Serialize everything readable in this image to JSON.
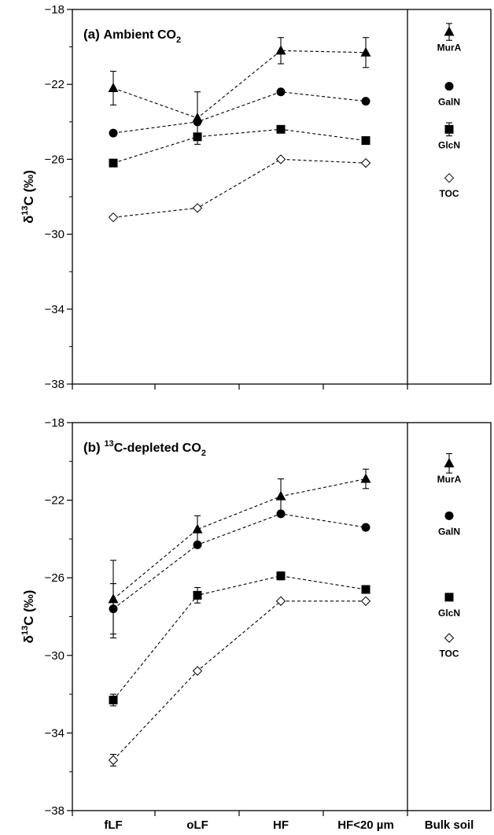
{
  "chart_data": [
    {
      "type": "line",
      "panel_label": "(a)",
      "title_main": "Ambient CO",
      "title_sub": "2",
      "ylabel_delta": "δ",
      "ylabel_sup": "13",
      "ylabel_rest": "C (‰)",
      "ylim": [
        -38,
        -18
      ],
      "yticks": [
        -18,
        -22,
        -26,
        -30,
        -34,
        -38
      ],
      "ytick_labels": [
        "−18",
        "−22",
        "−26",
        "−30",
        "−34",
        "−38"
      ],
      "categories": [
        "fLF",
        "oLF",
        "HF",
        "HF<20 µm"
      ],
      "bulk_category": "Bulk soil",
      "series": [
        {
          "name": "MurA",
          "marker": "triangle",
          "values": [
            -22.2,
            -23.8,
            -20.2,
            -20.3
          ],
          "err": [
            0.9,
            1.4,
            0.7,
            0.8
          ],
          "bulk": -19.2,
          "bulk_err": 0.45
        },
        {
          "name": "GalN",
          "marker": "circle",
          "values": [
            -24.6,
            -24.0,
            -22.4,
            -22.9
          ],
          "err": [
            0,
            0,
            0,
            0
          ],
          "bulk": -22.1,
          "bulk_err": 0
        },
        {
          "name": "GlcN",
          "marker": "square",
          "values": [
            -26.2,
            -24.8,
            -24.4,
            -25.0
          ],
          "err": [
            0,
            0,
            0,
            0
          ],
          "bulk": -24.4,
          "bulk_err": 0.35
        },
        {
          "name": "TOC",
          "marker": "diamond",
          "values": [
            -29.1,
            -28.6,
            -26.0,
            -26.2
          ],
          "err": [
            0,
            0,
            0,
            0
          ],
          "bulk": -27.0,
          "bulk_err": 0
        }
      ],
      "bulk_labels": [
        "MurA",
        "GalN",
        "GlcN",
        "TOC"
      ]
    },
    {
      "type": "line",
      "panel_label": "(b)",
      "title_sup": "13",
      "title_main": "C-depleted CO",
      "title_sub": "2",
      "ylabel_delta": "δ",
      "ylabel_sup": "13",
      "ylabel_rest": "C (‰)",
      "ylim": [
        -38,
        -18
      ],
      "yticks": [
        -18,
        -22,
        -26,
        -30,
        -34,
        -38
      ],
      "ytick_labels": [
        "−18",
        "−22",
        "−26",
        "−30",
        "−34",
        "−38"
      ],
      "categories": [
        "fLF",
        "oLF",
        "HF",
        "HF<20 µm"
      ],
      "bulk_category": "Bulk soil",
      "series": [
        {
          "name": "MurA",
          "marker": "triangle",
          "values": [
            -27.1,
            -23.5,
            -21.8,
            -20.9
          ],
          "err": [
            2.0,
            0.7,
            0.9,
            0.5
          ],
          "bulk": -20.1,
          "bulk_err": 0.5
        },
        {
          "name": "GalN",
          "marker": "circle",
          "values": [
            -27.6,
            -24.3,
            -22.7,
            -23.4
          ],
          "err": [
            1.3,
            0,
            0,
            0
          ],
          "bulk": -22.8,
          "bulk_err": 0
        },
        {
          "name": "GlcN",
          "marker": "square",
          "values": [
            -32.3,
            -26.9,
            -25.9,
            -26.6
          ],
          "err": [
            0.3,
            0.4,
            0.2,
            0.2
          ],
          "bulk": -27.0,
          "bulk_err": 0
        },
        {
          "name": "TOC",
          "marker": "diamond",
          "values": [
            -35.4,
            -30.8,
            -27.2,
            -27.2
          ],
          "err": [
            0.3,
            0,
            0,
            0
          ],
          "bulk": -29.1,
          "bulk_err": 0
        }
      ],
      "bulk_labels": [
        "MurA",
        "GalN",
        "GlcN",
        "TOC"
      ]
    }
  ]
}
